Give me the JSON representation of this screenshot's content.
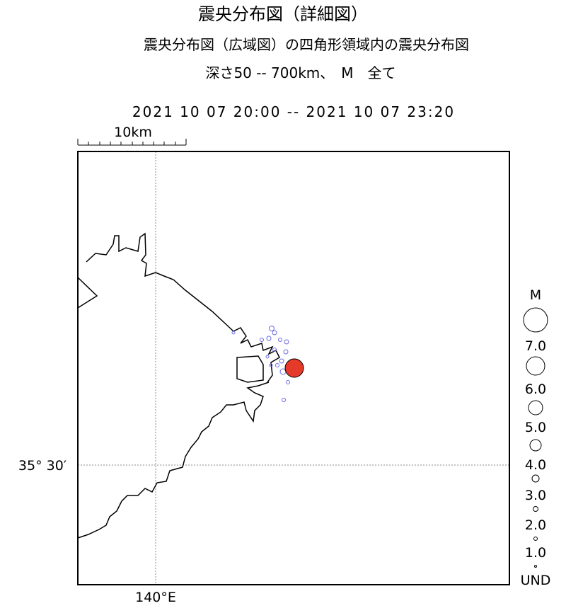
{
  "header": {
    "title": "震央分布図（詳細図）",
    "subtitle": "震央分布図（広域図）の四角形領域内の震央分布図",
    "condition": "深さ50 -- 700km、　M　全て",
    "period": "2021 10 07 20:00 -- 2021 10 07 23:20"
  },
  "map": {
    "scale_label": "10km",
    "lat_label": "35° 30′",
    "lon_label": "140°E"
  },
  "legend": {
    "title": "M",
    "labels": [
      "7.0",
      "6.0",
      "5.0",
      "4.0",
      "3.0",
      "2.0",
      "1.0",
      "UND"
    ]
  }
}
